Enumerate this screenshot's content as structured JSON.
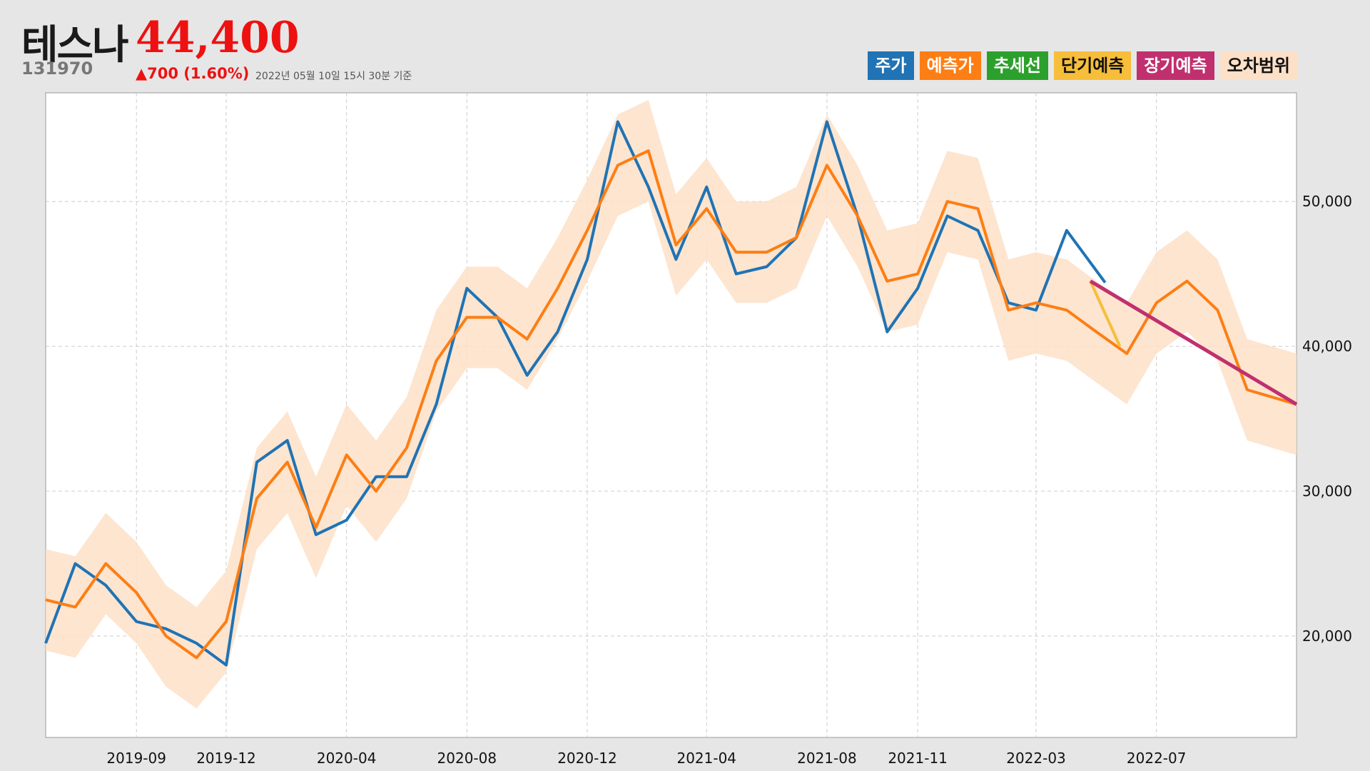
{
  "header": {
    "name": "테스나",
    "price": "44,400",
    "code": "131970",
    "change": "▲700 (1.60%)",
    "timestamp": "2022년 05월 10일 15시 30분 기준"
  },
  "legend": [
    {
      "label": "주가",
      "bg": "#2073b4",
      "color": "#ffffff"
    },
    {
      "label": "예측가",
      "bg": "#fd7e14",
      "color": "#ffffff"
    },
    {
      "label": "추세선",
      "bg": "#2ca02c",
      "color": "#ffffff"
    },
    {
      "label": "단기예측",
      "bg": "#f6be3a",
      "color": "#111111"
    },
    {
      "label": "장기예측",
      "bg": "#c0306e",
      "color": "#ffffff"
    },
    {
      "label": "오차범위",
      "bg": "#fde0c8",
      "color": "#111111"
    }
  ],
  "chart_data": {
    "type": "line",
    "xlim": [
      "2019-06-01",
      "2022-11-20"
    ],
    "ylim": [
      13000,
      57500
    ],
    "x_ticks": [
      "2019-09",
      "2019-12",
      "2020-04",
      "2020-08",
      "2020-12",
      "2021-04",
      "2021-08",
      "2021-11",
      "2022-03",
      "2022-07"
    ],
    "y_ticks": [
      "20,000",
      "30,000",
      "40,000",
      "50,000"
    ],
    "y_tick_values": [
      20000,
      30000,
      40000,
      50000
    ],
    "grid": true,
    "colors": {
      "price": "#2073b4",
      "pred": "#fd7e14",
      "band": "#fde0c8",
      "short": "#f6be3a",
      "long": "#c0306e"
    },
    "series": [
      {
        "name": "주가",
        "x": [
          "2019-06-01",
          "2019-07-01",
          "2019-08-01",
          "2019-09-01",
          "2019-10-01",
          "2019-11-01",
          "2019-12-01",
          "2020-01-01",
          "2020-02-01",
          "2020-03-01",
          "2020-04-01",
          "2020-05-01",
          "2020-06-01",
          "2020-07-01",
          "2020-08-01",
          "2020-09-01",
          "2020-10-01",
          "2020-11-01",
          "2020-12-01",
          "2021-01-01",
          "2021-02-01",
          "2021-03-01",
          "2021-04-01",
          "2021-05-01",
          "2021-06-01",
          "2021-07-01",
          "2021-08-01",
          "2021-09-01",
          "2021-10-01",
          "2021-11-01",
          "2021-12-01",
          "2022-01-01",
          "2022-02-01",
          "2022-03-01",
          "2022-04-01",
          "2022-05-10"
        ],
        "y": [
          19500,
          25000,
          23500,
          21000,
          20500,
          19500,
          18000,
          32000,
          33500,
          27000,
          28000,
          31000,
          31000,
          36000,
          44000,
          42000,
          38000,
          41000,
          46000,
          55500,
          51000,
          46000,
          51000,
          45000,
          45500,
          47500,
          55500,
          49000,
          41000,
          44000,
          49000,
          48000,
          43000,
          42500,
          48000,
          44400
        ]
      },
      {
        "name": "예측가",
        "x": [
          "2019-06-01",
          "2019-07-01",
          "2019-08-01",
          "2019-09-01",
          "2019-10-01",
          "2019-11-01",
          "2019-12-01",
          "2020-01-01",
          "2020-02-01",
          "2020-03-01",
          "2020-04-01",
          "2020-05-01",
          "2020-06-01",
          "2020-07-01",
          "2020-08-01",
          "2020-09-01",
          "2020-10-01",
          "2020-11-01",
          "2020-12-01",
          "2021-01-01",
          "2021-02-01",
          "2021-03-01",
          "2021-04-01",
          "2021-05-01",
          "2021-06-01",
          "2021-07-01",
          "2021-08-01",
          "2021-09-01",
          "2021-10-01",
          "2021-11-01",
          "2021-12-01",
          "2022-01-01",
          "2022-02-01",
          "2022-03-01",
          "2022-04-01",
          "2022-05-01",
          "2022-06-01",
          "2022-07-01",
          "2022-08-01",
          "2022-09-01",
          "2022-10-01",
          "2022-11-20"
        ],
        "y": [
          22500,
          22000,
          25000,
          23000,
          20000,
          18500,
          21000,
          29500,
          32000,
          27500,
          32500,
          30000,
          33000,
          39000,
          42000,
          42000,
          40500,
          44000,
          48000,
          52500,
          53500,
          47000,
          49500,
          46500,
          46500,
          47500,
          52500,
          49000,
          44500,
          45000,
          50000,
          49500,
          42500,
          43000,
          42500,
          41000,
          39500,
          43000,
          44500,
          42500,
          37000,
          36000
        ]
      },
      {
        "name": "단기예측",
        "x": [
          "2022-04-25",
          "2022-05-25"
        ],
        "y": [
          44500,
          40000
        ]
      },
      {
        "name": "장기예측",
        "x": [
          "2022-04-25",
          "2022-11-20"
        ],
        "y": [
          44500,
          36000
        ]
      }
    ],
    "band_width": 3500
  }
}
